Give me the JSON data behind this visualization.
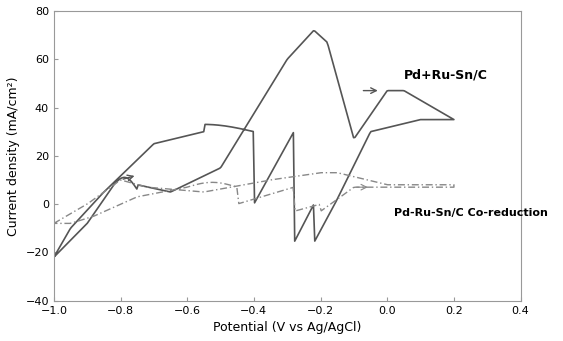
{
  "title": "",
  "xlabel": "Potential (V vs Ag/AgCl)",
  "ylabel": "Current density (mA/cm²)",
  "xlim": [
    -1.0,
    0.4
  ],
  "ylim": [
    -40,
    80
  ],
  "xticks": [
    -1.0,
    -0.8,
    -0.6,
    -0.4,
    -0.2,
    0.0,
    0.2,
    0.4
  ],
  "yticks": [
    -40,
    -20,
    0,
    20,
    40,
    60,
    80
  ],
  "label_solid": "Pd+Ru-Sn/C",
  "label_dash": "Pd-Ru-Sn/C Co-reduction",
  "background_color": "#ffffff",
  "line_color_solid": "#555555",
  "line_color_dash": "#888888",
  "fontsize_label": 9,
  "fontsize_tick": 8,
  "fontsize_annot": 9
}
